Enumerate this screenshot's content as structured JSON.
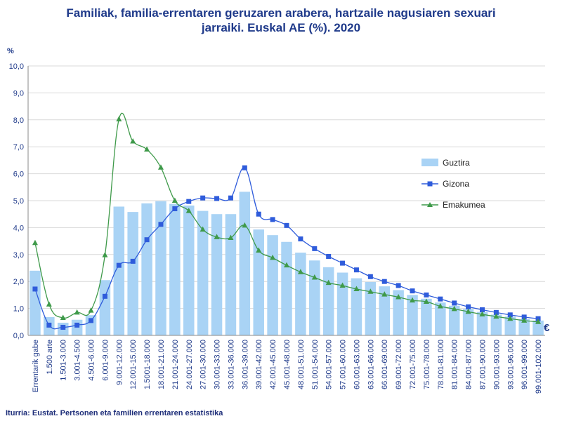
{
  "title_line1": "Familiak, familia-errentaren geruzaren arabera, hartzaile nagusiaren sexuari",
  "title_line2": "jarraiki. Euskal AE (%). 2020",
  "source": "Iturria: Eustat. Pertsonen eta familien errentaren estatistika",
  "chart_data": {
    "type": "bar",
    "ylabel": "%",
    "unit_label": "€",
    "ylim": [
      0,
      10
    ],
    "yticks": [
      "0,0",
      "1,0",
      "2,0",
      "3,0",
      "4,0",
      "5,0",
      "6,0",
      "7,0",
      "8,0",
      "9,0",
      "10,0"
    ],
    "categories": [
      "Errentarik gabe",
      "1.500 arte",
      "1.501-3.000",
      "3.001-4.500",
      "4.501-6.000",
      "6.001-9.000",
      "9.001-12.000",
      "12.001-15.000",
      "1.5001-18.000",
      "18.001-21.000",
      "21.001-24.000",
      "24.001-27.000",
      "27.001-30.000",
      "30.001-33.000",
      "33.001-36.000",
      "36.001-39.000",
      "39.001-42.000",
      "42.001-45.000",
      "45.001-48.000",
      "48.001-51.000",
      "51.001-54.000",
      "54.001-57.000",
      "57.001-60.000",
      "60.001-63.000",
      "63.001-66.000",
      "66.001-69.000",
      "69.001-72.000",
      "72.001-75.000",
      "75.001-78.000",
      "78.001-81.000",
      "81.001-84.000",
      "84.001-87.000",
      "87.001-90.000",
      "90.001-93.000",
      "93.001-96.000",
      "96.001-99.000",
      "99.001-102.000"
    ],
    "series": [
      {
        "name": "Guztira",
        "kind": "bar",
        "color": "#a9d3f5",
        "values": [
          2.4,
          0.68,
          0.47,
          0.58,
          0.75,
          2.05,
          4.78,
          4.58,
          4.9,
          4.98,
          4.88,
          4.82,
          4.62,
          4.5,
          4.5,
          5.33,
          3.93,
          3.72,
          3.47,
          3.07,
          2.78,
          2.53,
          2.33,
          2.12,
          1.98,
          1.82,
          1.68,
          1.5,
          1.36,
          1.22,
          1.1,
          0.98,
          0.87,
          0.77,
          0.7,
          0.6,
          0.55
        ]
      },
      {
        "name": "Gizona",
        "kind": "line",
        "color": "#2f5cdb",
        "marker": "square",
        "values": [
          1.72,
          0.38,
          0.3,
          0.38,
          0.55,
          1.45,
          2.6,
          2.75,
          3.55,
          4.12,
          4.7,
          4.97,
          5.1,
          5.08,
          5.1,
          6.22,
          4.5,
          4.3,
          4.08,
          3.58,
          3.22,
          2.93,
          2.68,
          2.43,
          2.18,
          2.0,
          1.85,
          1.65,
          1.5,
          1.35,
          1.2,
          1.06,
          0.95,
          0.85,
          0.76,
          0.68,
          0.62
        ]
      },
      {
        "name": "Emakumea",
        "kind": "line",
        "color": "#3f9a4a",
        "marker": "triangle",
        "values": [
          3.43,
          1.15,
          0.65,
          0.85,
          0.92,
          2.98,
          8.02,
          7.2,
          6.9,
          6.23,
          5.0,
          4.62,
          3.93,
          3.65,
          3.62,
          4.08,
          3.15,
          2.88,
          2.6,
          2.35,
          2.15,
          1.95,
          1.85,
          1.72,
          1.62,
          1.52,
          1.42,
          1.3,
          1.25,
          1.08,
          0.98,
          0.88,
          0.78,
          0.7,
          0.62,
          0.55,
          0.5
        ]
      }
    ],
    "legend": [
      "Guztira",
      "Gizona",
      "Emakumea"
    ],
    "legend_position": "right"
  }
}
